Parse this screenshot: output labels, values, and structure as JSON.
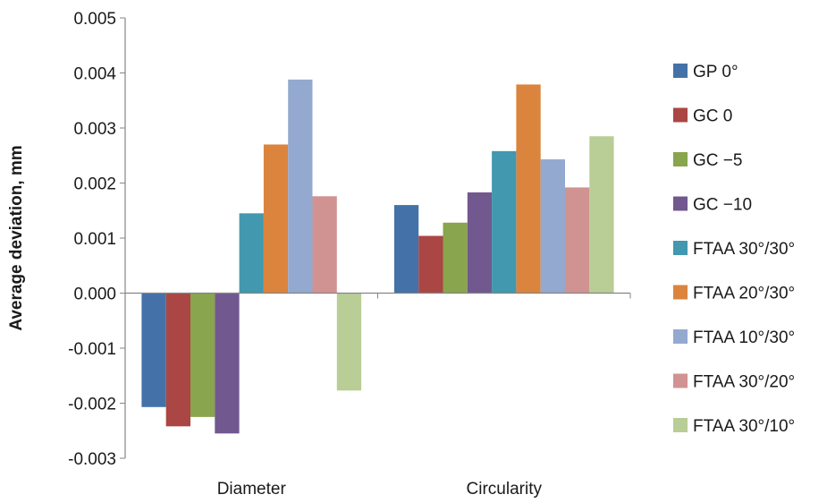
{
  "chart_data": {
    "type": "bar",
    "title": "",
    "xlabel": "",
    "ylabel": "Average deviation, mm",
    "ylim": [
      -0.003,
      0.005
    ],
    "yticks": [
      "0.005",
      "0.004",
      "0.003",
      "0.002",
      "0.001",
      "0.000",
      "-0.001",
      "-0.002",
      "-0.003"
    ],
    "categories": [
      "Diameter",
      "Circularity"
    ],
    "grid": false,
    "legend_position": "right",
    "series": [
      {
        "name": "GP 0°",
        "color": "#4472a8",
        "values": [
          -0.00207,
          0.0016
        ]
      },
      {
        "name": "GC 0",
        "color": "#aa4643",
        "values": [
          -0.00242,
          0.00104
        ]
      },
      {
        "name": "GC −5",
        "color": "#89a54e",
        "values": [
          -0.00225,
          0.00128
        ]
      },
      {
        "name": "GC −10",
        "color": "#71588f",
        "values": [
          -0.00255,
          0.00183
        ]
      },
      {
        "name": "FTAA 30°/30°",
        "color": "#4198af",
        "values": [
          0.00145,
          0.00258
        ]
      },
      {
        "name": "FTAA 20°/30°",
        "color": "#db843d",
        "values": [
          0.0027,
          0.00379
        ]
      },
      {
        "name": "FTAA 10°/30°",
        "color": "#93a9cf",
        "values": [
          0.00388,
          0.00243
        ]
      },
      {
        "name": "FTAA 30°/20°",
        "color": "#d19392",
        "values": [
          0.00176,
          0.00192
        ]
      },
      {
        "name": "FTAA 30°/10°",
        "color": "#b9cd96",
        "values": [
          -0.00177,
          0.00285
        ]
      }
    ]
  }
}
